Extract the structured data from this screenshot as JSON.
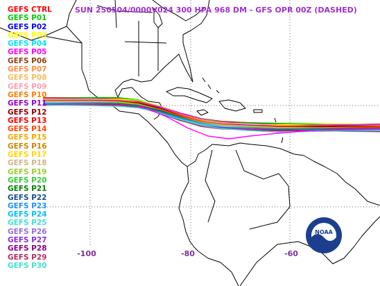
{
  "title": "SUN 250504/0000V024  300 HPA 968 DM - GFS OPR 00Z (DASHED)",
  "colors": {
    "title": "#a030d0",
    "axis_labels": "#7c2fa0",
    "coast": "#000000",
    "grid": "#6a6a6a",
    "background": "#ffffff"
  },
  "legend": [
    {
      "label": "GEFS CTRL",
      "color": "#ff0000"
    },
    {
      "label": "GEFS P01",
      "color": "#00cc00"
    },
    {
      "label": "GEFS P02",
      "color": "#0000ff"
    },
    {
      "label": "GEFS P03",
      "color": "#ffff00"
    },
    {
      "label": "GEFS P04",
      "color": "#00e5ee"
    },
    {
      "label": "GEFS P05",
      "color": "#ff00ff"
    },
    {
      "label": "GEFS P06",
      "color": "#8b4513"
    },
    {
      "label": "GEFS P07",
      "color": "#ff8c40"
    },
    {
      "label": "GEFS P08",
      "color": "#f0c060"
    },
    {
      "label": "GEFS P09",
      "color": "#ff9eb5"
    },
    {
      "label": "GEFS P10",
      "color": "#ff7f00"
    },
    {
      "label": "GEFS P11",
      "color": "#9400d3"
    },
    {
      "label": "GEFS P12",
      "color": "#8b0000"
    },
    {
      "label": "GEFS P13",
      "color": "#ee0000"
    },
    {
      "label": "GEFS P14",
      "color": "#ff4500"
    },
    {
      "label": "GEFS P15",
      "color": "#ffa500"
    },
    {
      "label": "GEFS P16",
      "color": "#cd8500"
    },
    {
      "label": "GEFS P17",
      "color": "#ffd700"
    },
    {
      "label": "GEFS P18",
      "color": "#d2b48c"
    },
    {
      "label": "GEFS P19",
      "color": "#9acd32"
    },
    {
      "label": "GEFS P20",
      "color": "#32cd32"
    },
    {
      "label": "GEFS P21",
      "color": "#008000"
    },
    {
      "label": "GEFS P22",
      "color": "#1a4f8a"
    },
    {
      "label": "GEFS P23",
      "color": "#1e90ff"
    },
    {
      "label": "GEFS P24",
      "color": "#00bfff"
    },
    {
      "label": "GEFS P25",
      "color": "#40e0d0"
    },
    {
      "label": "GEFS P26",
      "color": "#9370db"
    },
    {
      "label": "GEFS P27",
      "color": "#8a2be2"
    },
    {
      "label": "GEFS P28",
      "color": "#8b008b"
    },
    {
      "label": "GEFS P29",
      "color": "#b03060"
    },
    {
      "label": "GEFS P30",
      "color": "#40e0d0"
    }
  ],
  "lon_labels": [
    "-100",
    "-80",
    "-60"
  ],
  "logo": {
    "text": "NOAA"
  }
}
